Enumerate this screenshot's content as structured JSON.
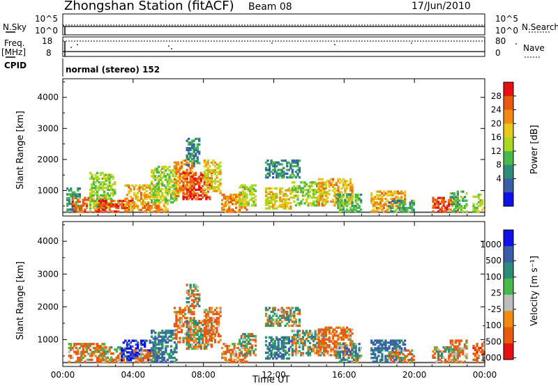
{
  "header": {
    "station": "Zhongshan Station (fitACF)",
    "beam": "Beam 08",
    "date": "17/Jun/2010"
  },
  "top_panels": {
    "nsky_label": "N.Sky",
    "nsearch_label": "N.Search",
    "freq_label_line1": "Freq.",
    "freq_label_line2": "[MHz]",
    "nave_label": "Nave",
    "cpid_label": "CPID",
    "left_ticks_noise": [
      "10^5",
      "10^0"
    ],
    "right_ticks_noise": [
      "10^5",
      "10^0"
    ],
    "left_ticks_freq": [
      "18",
      "8"
    ],
    "right_ticks_nave": [
      "80",
      "0"
    ],
    "cpid_text": "normal (stereo) 152"
  },
  "colors": {
    "blue": "#1010e8",
    "steel": "#3a5fa8",
    "teal": "#2e8b7a",
    "green": "#48b848",
    "lime": "#a8d820",
    "yellow": "#e8c818",
    "orange": "#f08a10",
    "darkorange": "#e85a10",
    "red": "#e81010",
    "grey": "#bdbdbd"
  },
  "chart_data": [
    {
      "type": "heatmap",
      "name": "power",
      "ylabel": "Slant Range [km]",
      "xlabel": "",
      "x_ticks": [
        "00:00",
        "04:00",
        "08:00",
        "12:00",
        "16:00",
        "20:00",
        "00:00"
      ],
      "x_range_hours": [
        0,
        24
      ],
      "y_ticks": [
        1000,
        2000,
        3000,
        4000
      ],
      "ylim": [
        180,
        4600
      ],
      "colorbar": {
        "label": "Power [dB]",
        "ticks": [
          "28",
          "24",
          "20",
          "16",
          "12",
          "8",
          "4"
        ],
        "range": [
          0,
          30
        ]
      },
      "blobs": [
        {
          "t0": 0.2,
          "t1": 1.0,
          "r0": 300,
          "r1": 1100,
          "v": 10
        },
        {
          "t0": 0.5,
          "t1": 2.5,
          "r0": 300,
          "r1": 800,
          "v": 24
        },
        {
          "t0": 1.5,
          "t1": 3.0,
          "r0": 400,
          "r1": 1600,
          "v": 14
        },
        {
          "t0": 2.0,
          "t1": 4.0,
          "r0": 300,
          "r1": 700,
          "v": 26
        },
        {
          "t0": 3.5,
          "t1": 5.5,
          "r0": 350,
          "r1": 1200,
          "v": 20
        },
        {
          "t0": 4.5,
          "t1": 6.0,
          "r0": 300,
          "r1": 600,
          "v": 22
        },
        {
          "t0": 5.0,
          "t1": 6.5,
          "r0": 600,
          "r1": 1800,
          "v": 14
        },
        {
          "t0": 6.3,
          "t1": 7.5,
          "r0": 800,
          "r1": 2000,
          "v": 22
        },
        {
          "t0": 6.8,
          "t1": 8.5,
          "r0": 700,
          "r1": 1600,
          "v": 26
        },
        {
          "t0": 7.0,
          "t1": 7.8,
          "r0": 1800,
          "r1": 2700,
          "v": 8
        },
        {
          "t0": 8.0,
          "t1": 9.0,
          "r0": 900,
          "r1": 2000,
          "v": 18
        },
        {
          "t0": 9.0,
          "t1": 10.5,
          "r0": 300,
          "r1": 900,
          "v": 22
        },
        {
          "t0": 10.0,
          "t1": 11.0,
          "r0": 500,
          "r1": 1200,
          "v": 16
        },
        {
          "t0": 11.5,
          "t1": 13.5,
          "r0": 1400,
          "r1": 2000,
          "v": 8
        },
        {
          "t0": 11.5,
          "t1": 13.0,
          "r0": 400,
          "r1": 1100,
          "v": 18
        },
        {
          "t0": 13.0,
          "t1": 15.0,
          "r0": 500,
          "r1": 1300,
          "v": 14
        },
        {
          "t0": 14.5,
          "t1": 16.5,
          "r0": 500,
          "r1": 1400,
          "v": 20
        },
        {
          "t0": 15.5,
          "t1": 17.0,
          "r0": 300,
          "r1": 900,
          "v": 12
        },
        {
          "t0": 17.5,
          "t1": 19.5,
          "r0": 300,
          "r1": 1000,
          "v": 20
        },
        {
          "t0": 18.5,
          "t1": 20.0,
          "r0": 300,
          "r1": 700,
          "v": 10
        },
        {
          "t0": 21.0,
          "t1": 22.5,
          "r0": 300,
          "r1": 800,
          "v": 26
        },
        {
          "t0": 22.0,
          "t1": 23.0,
          "r0": 300,
          "r1": 1000,
          "v": 12
        },
        {
          "t0": 23.3,
          "t1": 24.0,
          "r0": 300,
          "r1": 900,
          "v": 16
        }
      ]
    },
    {
      "type": "heatmap",
      "name": "velocity",
      "ylabel": "Slant Range [km]",
      "xlabel": "Time UT",
      "x_ticks": [
        "00:00",
        "04:00",
        "08:00",
        "12:00",
        "16:00",
        "20:00",
        "00:00"
      ],
      "x_range_hours": [
        0,
        24
      ],
      "y_ticks": [
        1000,
        2000,
        3000,
        4000
      ],
      "ylim": [
        180,
        4600
      ],
      "colorbar": {
        "label": "Velocity [m s^-1]",
        "ticks": [
          "1000",
          "500",
          "100",
          "25",
          "-25",
          "-100",
          "-500",
          "-1000"
        ],
        "range": [
          -1200,
          1200
        ]
      },
      "blobs": [
        {
          "t0": 0.3,
          "t1": 2.5,
          "r0": 300,
          "r1": 900,
          "v": -150
        },
        {
          "t0": 2.0,
          "t1": 3.5,
          "r0": 300,
          "r1": 800,
          "v": -80
        },
        {
          "t0": 3.3,
          "t1": 5.0,
          "r0": 350,
          "r1": 1000,
          "v": 800
        },
        {
          "t0": 4.0,
          "t1": 5.5,
          "r0": 300,
          "r1": 700,
          "v": -200
        },
        {
          "t0": 5.0,
          "t1": 6.5,
          "r0": 300,
          "r1": 1300,
          "v": 300
        },
        {
          "t0": 6.3,
          "t1": 7.5,
          "r0": 900,
          "r1": 2000,
          "v": -150
        },
        {
          "t0": 7.0,
          "t1": 8.5,
          "r0": 700,
          "r1": 1600,
          "v": 60
        },
        {
          "t0": 7.0,
          "t1": 7.8,
          "r0": 2000,
          "r1": 2700,
          "v": 0
        },
        {
          "t0": 8.0,
          "t1": 9.0,
          "r0": 900,
          "r1": 2000,
          "v": -200
        },
        {
          "t0": 9.0,
          "t1": 10.5,
          "r0": 300,
          "r1": 900,
          "v": -150
        },
        {
          "t0": 10.0,
          "t1": 11.0,
          "r0": 500,
          "r1": 1200,
          "v": 60
        },
        {
          "t0": 11.5,
          "t1": 13.5,
          "r0": 1400,
          "r1": 2000,
          "v": 0
        },
        {
          "t0": 11.5,
          "t1": 13.0,
          "r0": 400,
          "r1": 1100,
          "v": 300
        },
        {
          "t0": 13.0,
          "t1": 15.0,
          "r0": 500,
          "r1": 1300,
          "v": 60
        },
        {
          "t0": 14.5,
          "t1": 16.5,
          "r0": 500,
          "r1": 1400,
          "v": -200
        },
        {
          "t0": 15.5,
          "t1": 17.0,
          "r0": 300,
          "r1": 900,
          "v": 200
        },
        {
          "t0": 17.5,
          "t1": 19.5,
          "r0": 300,
          "r1": 1000,
          "v": 400
        },
        {
          "t0": 18.5,
          "t1": 20.0,
          "r0": 300,
          "r1": 700,
          "v": -100
        },
        {
          "t0": 21.0,
          "t1": 22.5,
          "r0": 300,
          "r1": 800,
          "v": 0
        },
        {
          "t0": 22.0,
          "t1": 23.0,
          "r0": 300,
          "r1": 1000,
          "v": -150
        },
        {
          "t0": 23.3,
          "t1": 24.0,
          "r0": 300,
          "r1": 900,
          "v": -300
        }
      ]
    }
  ]
}
